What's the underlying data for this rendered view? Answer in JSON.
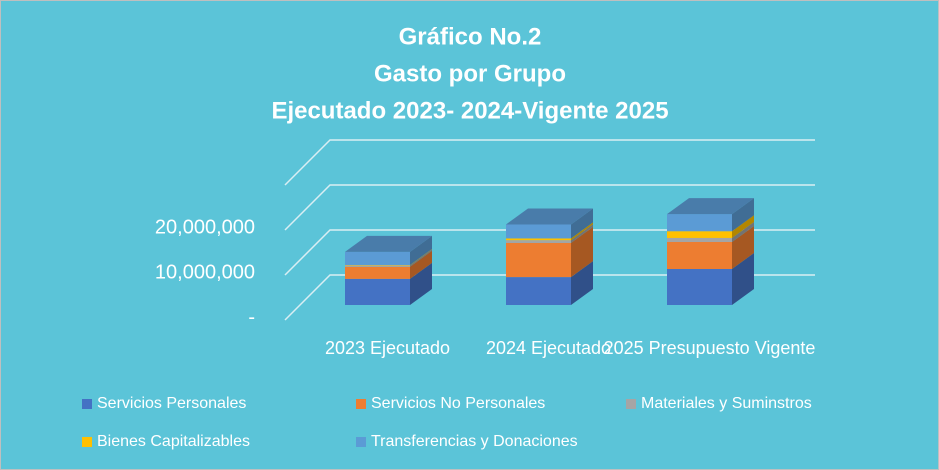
{
  "chart_data": {
    "type": "bar3d_stacked",
    "title": [
      "Gráfico No.2",
      "Gasto por Grupo",
      "Ejecutado 2023- 2024-Vigente 2025"
    ],
    "categories": [
      "2023 Ejecutado",
      "2024 Ejecutado",
      "2025 Presupuesto Vigente"
    ],
    "series": [
      {
        "name": "Servicios Personales",
        "color": "#4472c4",
        "values": [
          5800000,
          6200000,
          8000000
        ]
      },
      {
        "name": "Servicios No Personales",
        "color": "#ed7d31",
        "values": [
          2700000,
          7600000,
          6000000
        ]
      },
      {
        "name": "Materiales y Suminstros",
        "color": "#a5a5a5",
        "values": [
          300000,
          600000,
          900000
        ]
      },
      {
        "name": "Bienes Capitalizables",
        "color": "#ffc000",
        "values": [
          100000,
          400000,
          1500000
        ]
      },
      {
        "name": "Transferencias y Donaciones",
        "color": "#5b9bd5",
        "values": [
          2900000,
          3100000,
          3800000
        ]
      }
    ],
    "ylim": [
      0,
      30000000
    ],
    "yticks": [
      {
        "value": 0,
        "label": "-"
      },
      {
        "value": 10000000,
        "label": "10,000,000"
      },
      {
        "value": 20000000,
        "label": "20,000,000"
      }
    ],
    "grid": true
  }
}
